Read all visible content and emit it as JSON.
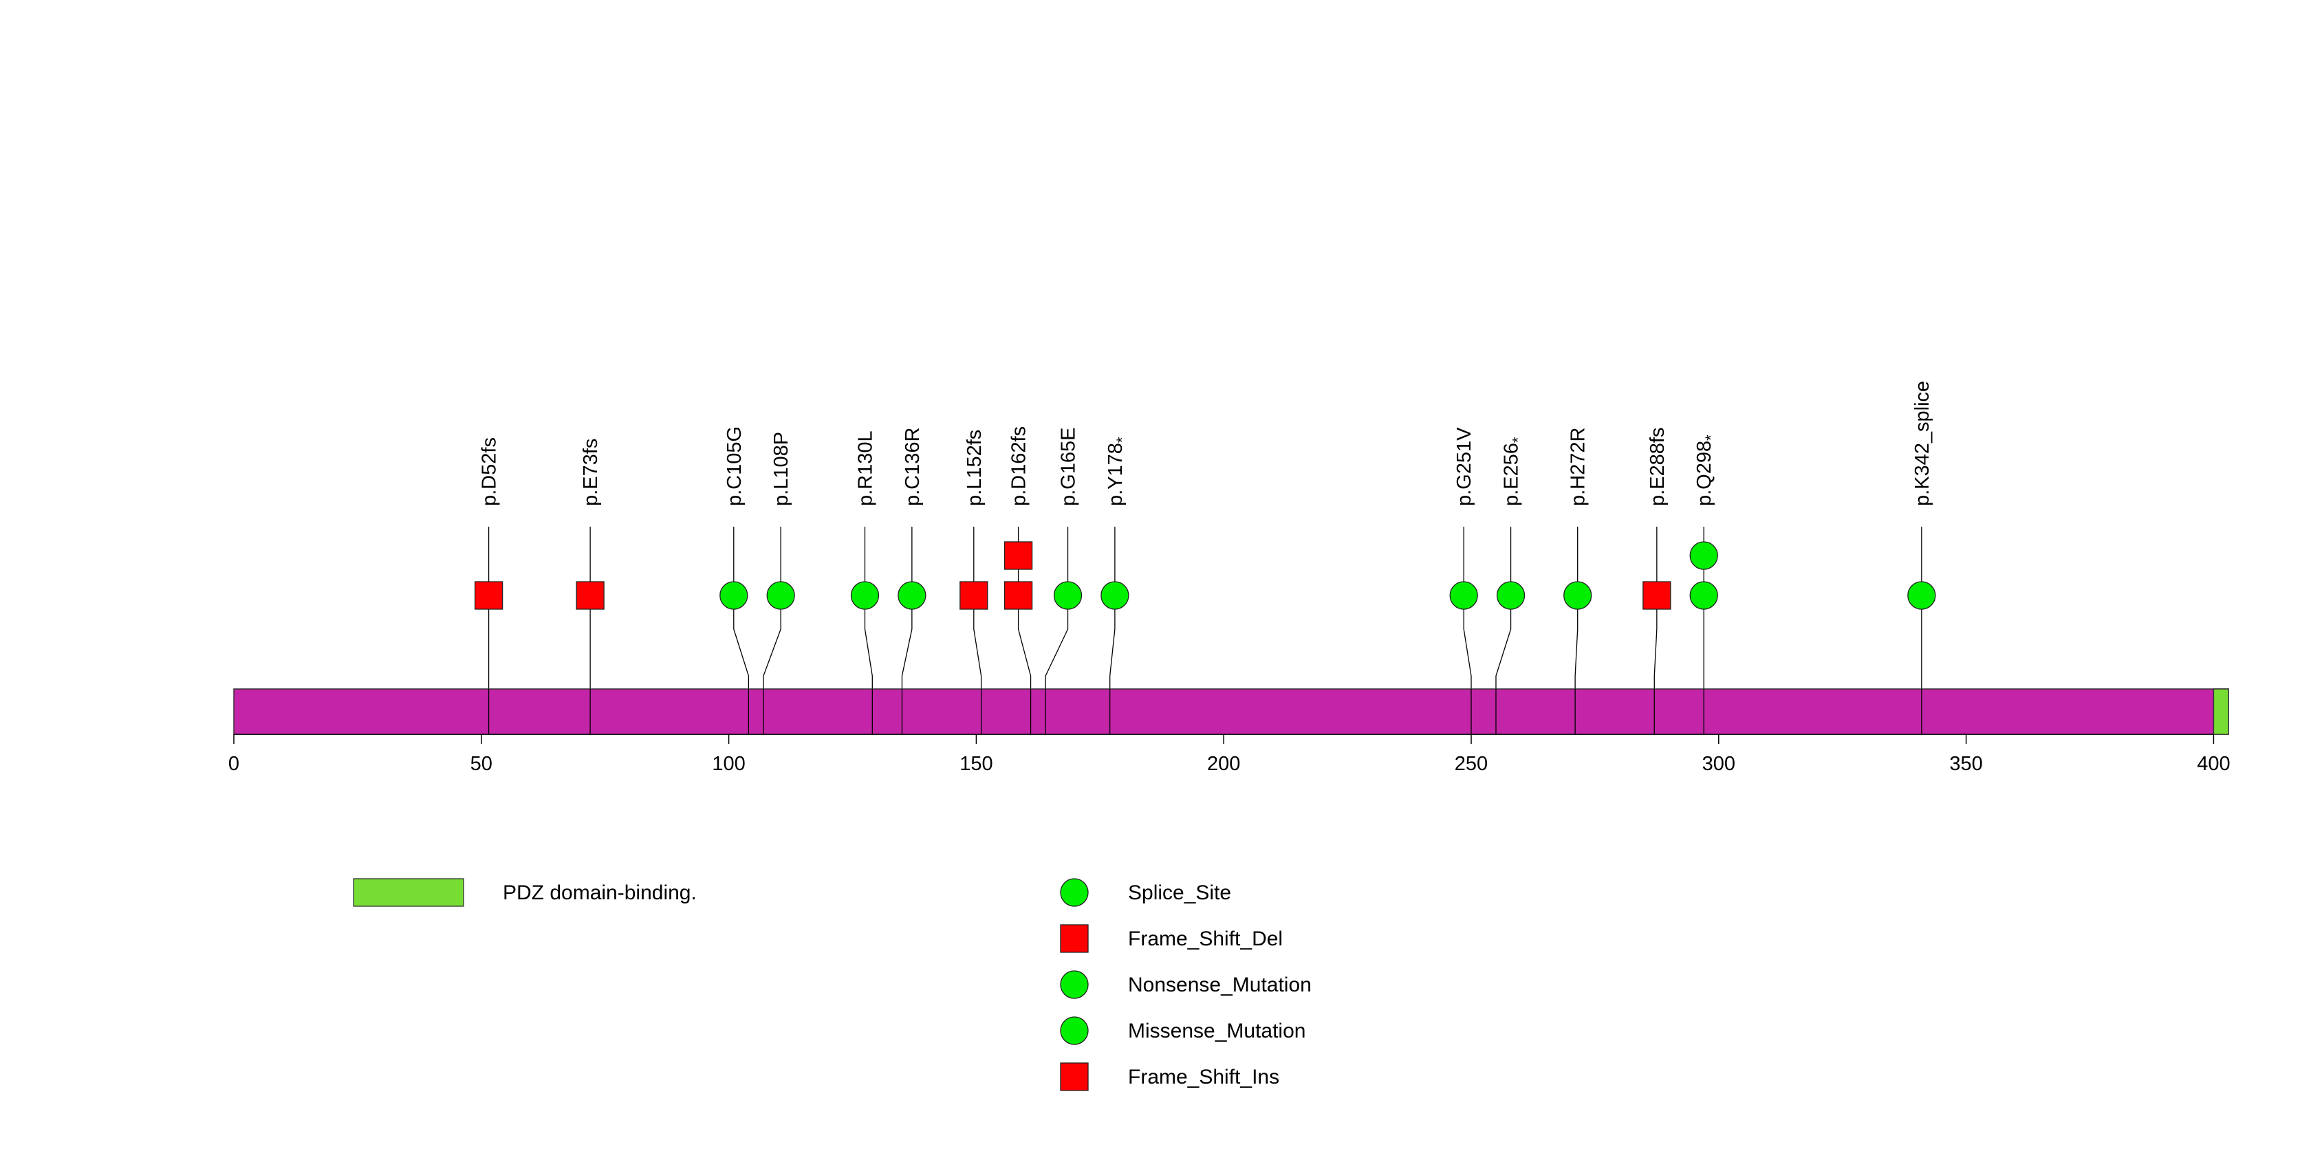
{
  "chart_data": {
    "type": "lollipop",
    "title": "",
    "protein_length": 403,
    "xlim": [
      0,
      403
    ],
    "ticks": [
      0,
      50,
      100,
      150,
      200,
      250,
      300,
      350,
      400
    ],
    "domains": [
      {
        "name": "PDZ domain-binding.",
        "start": 400,
        "end": 403,
        "color": "#77DD33"
      }
    ],
    "backbone_color": "#C425A8",
    "mutations": [
      {
        "label": "p.D52fs",
        "sup": "",
        "position": 51.5,
        "marker_position": 51.5,
        "types": [
          "Frame_Shift_Del"
        ]
      },
      {
        "label": "p.E73fs",
        "sup": "",
        "position": 72,
        "marker_position": 72,
        "types": [
          "Frame_Shift_Del"
        ]
      },
      {
        "label": "p.C105G",
        "sup": "",
        "position": 104,
        "marker_position": 101,
        "types": [
          "Missense_Mutation"
        ]
      },
      {
        "label": "p.L108P",
        "sup": "",
        "position": 107,
        "marker_position": 110.5,
        "types": [
          "Missense_Mutation"
        ]
      },
      {
        "label": "p.R130L",
        "sup": "",
        "position": 129,
        "marker_position": 127.5,
        "types": [
          "Missense_Mutation"
        ]
      },
      {
        "label": "p.C136R",
        "sup": "",
        "position": 135,
        "marker_position": 137,
        "types": [
          "Missense_Mutation"
        ]
      },
      {
        "label": "p.L152fs",
        "sup": "",
        "position": 151,
        "marker_position": 149.5,
        "types": [
          "Frame_Shift_Del"
        ]
      },
      {
        "label": "p.D162fs",
        "sup": "",
        "position": 161,
        "marker_position": 158.5,
        "types": [
          "Frame_Shift_Del",
          "Frame_Shift_Ins"
        ]
      },
      {
        "label": "p.G165E",
        "sup": "",
        "position": 164,
        "marker_position": 168.5,
        "types": [
          "Missense_Mutation"
        ]
      },
      {
        "label": "p.Y178",
        "sup": "*",
        "position": 177,
        "marker_position": 178,
        "types": [
          "Nonsense_Mutation"
        ]
      },
      {
        "label": "p.G251V",
        "sup": "",
        "position": 250,
        "marker_position": 248.5,
        "types": [
          "Missense_Mutation"
        ]
      },
      {
        "label": "p.E256",
        "sup": "*",
        "position": 255,
        "marker_position": 258,
        "types": [
          "Nonsense_Mutation"
        ]
      },
      {
        "label": "p.H272R",
        "sup": "",
        "position": 271,
        "marker_position": 271.5,
        "types": [
          "Missense_Mutation"
        ]
      },
      {
        "label": "p.E288fs",
        "sup": "",
        "position": 287,
        "marker_position": 287.5,
        "types": [
          "Frame_Shift_Del"
        ]
      },
      {
        "label": "p.Q298",
        "sup": "*",
        "position": 297,
        "marker_position": 297,
        "types": [
          "Nonsense_Mutation",
          "Nonsense_Mutation"
        ]
      },
      {
        "label": "p.K342_splice",
        "sup": "",
        "position": 341,
        "marker_position": 341,
        "types": [
          "Splice_Site"
        ]
      }
    ],
    "legend": {
      "domains": [
        {
          "label": "PDZ domain-binding.",
          "color": "#77DD33"
        }
      ],
      "mutation_types": [
        {
          "label": "Splice_Site",
          "shape": "circle",
          "color": "#00EE00"
        },
        {
          "label": "Frame_Shift_Del",
          "shape": "square",
          "color": "#FF0000"
        },
        {
          "label": "Nonsense_Mutation",
          "shape": "circle",
          "color": "#00EE00"
        },
        {
          "label": "Missense_Mutation",
          "shape": "circle",
          "color": "#00EE00"
        },
        {
          "label": "Frame_Shift_Ins",
          "shape": "square",
          "color": "#FF0000"
        }
      ]
    }
  }
}
